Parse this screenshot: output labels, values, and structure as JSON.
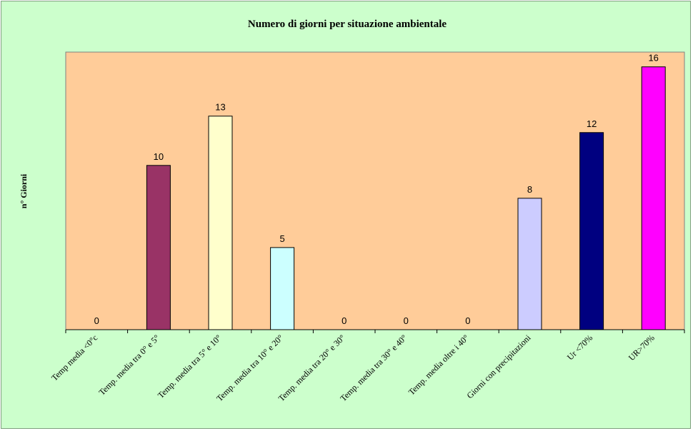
{
  "chart_data": {
    "type": "bar",
    "title": "Numero di giorni per situazione ambientale",
    "xlabel": "",
    "ylabel": "n° Giorni",
    "ylim": [
      0,
      17
    ],
    "grid": false,
    "legend": "none",
    "plot_background": "#ffcc99",
    "chart_background": "#ccffcc",
    "categories": [
      "Temp media <0°c",
      "Temp. media tra 0° e 5°",
      "Temp. media tra 5° e 10°",
      "Temp. media tra 10° e 20°",
      "Temp. media tra 20° e 30°",
      "Temp. media tra 30° e 40°",
      "Temp. media oltre i 40°",
      "Giorni con precipitazioni",
      "Ur <70%",
      "UR>70%"
    ],
    "values": [
      0,
      10,
      13,
      5,
      0,
      0,
      0,
      8,
      12,
      16
    ],
    "data_labels": [
      "0",
      "10",
      "13",
      "5",
      "0",
      "0",
      "0",
      "8",
      "12",
      "16"
    ],
    "colors": [
      "#993366",
      "#993366",
      "#ffffcc",
      "#ccffff",
      "#660066",
      "#ff8080",
      "#0066cc",
      "#ccccff",
      "#000080",
      "#ff00ff"
    ]
  }
}
